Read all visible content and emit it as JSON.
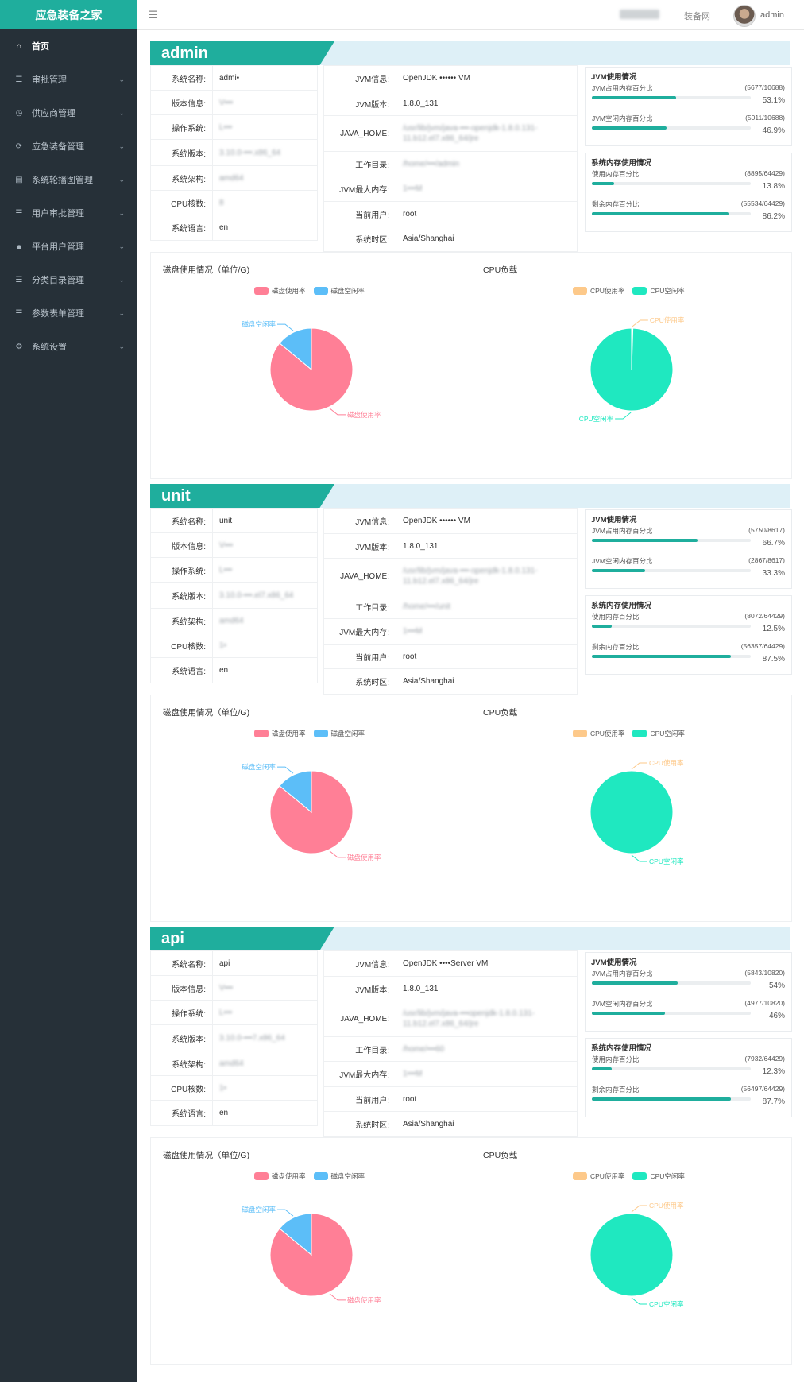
{
  "app": {
    "title": "应急装备之家"
  },
  "header": {
    "blurred_text": "••••••",
    "nav_link": "装备网",
    "user": "admin"
  },
  "sidebar": {
    "items": [
      {
        "label": "首页",
        "icon": "home-icon"
      },
      {
        "label": "审批管理",
        "icon": "list-icon"
      },
      {
        "label": "供应商管理",
        "icon": "clock-icon"
      },
      {
        "label": "应急装备管理",
        "icon": "refresh-icon"
      },
      {
        "label": "系统轮播图管理",
        "icon": "document-icon"
      },
      {
        "label": "用户审批管理",
        "icon": "list-icon"
      },
      {
        "label": "平台用户管理",
        "icon": "lock-icon"
      },
      {
        "label": "分类目录管理",
        "icon": "list-icon"
      },
      {
        "label": "参数表单管理",
        "icon": "list-icon"
      },
      {
        "label": "系统设置",
        "icon": "settings-icon"
      }
    ]
  },
  "labels": {
    "sys": [
      "系统名称:",
      "版本信息:",
      "操作系统:",
      "系统版本:",
      "系统架构:",
      "CPU核数:",
      "系统语言:"
    ],
    "jvm": [
      "JVM信息:",
      "JVM版本:",
      "JAVA_HOME:",
      "工作目录:",
      "JVM最大内存:",
      "当前用户:",
      "系统时区:"
    ],
    "jvm_usage": "JVM使用情况",
    "jvm_used": "JVM占用内存百分比",
    "jvm_free": "JVM空闲内存百分比",
    "sys_mem": "系统内存使用情况",
    "mem_used": "使用内存百分比",
    "mem_free": "剩余内存百分比",
    "disk_title": "磁盘使用情况（单位/G)",
    "cpu_title": "CPU负载",
    "disk_used": "磁盘使用率",
    "disk_free": "磁盘空闲率",
    "cpu_used": "CPU使用率",
    "cpu_free": "CPU空闲率"
  },
  "colors": {
    "accent": "#1fae9d",
    "disk_used": "#ff7f96",
    "disk_free": "#5cbef8",
    "cpu_used": "#fdc98a",
    "cpu_free": "#1fe8c0"
  },
  "sections": [
    {
      "name": "admin",
      "sys": [
        "admi•",
        "V•••",
        "L•••",
        "3.10.0-•••.x86_64",
        "amd64",
        "8",
        "en"
      ],
      "jvm": [
        "OpenJDK •••••• VM",
        "1.8.0_131",
        "/usr/lib/jvm/java-•••-openjdk-1.8.0.131-11.b12.el7.x86_64/jre",
        "/home/•••/admin",
        "1•••M",
        "root",
        "Asia/Shanghai"
      ],
      "jvm_used": {
        "ratio": "(5677/10688)",
        "pct": "53.1%",
        "value": 0.531
      },
      "jvm_free": {
        "ratio": "(5011/10688)",
        "pct": "46.9%",
        "value": 0.469
      },
      "mem_used": {
        "ratio": "(8895/64429)",
        "pct": "13.8%",
        "value": 0.138
      },
      "mem_free": {
        "ratio": "(55534/64429)",
        "pct": "86.2%",
        "value": 0.862
      },
      "chart_data": [
        {
          "type": "pie",
          "title": "磁盘使用情况（单位/G)",
          "categories": [
            "磁盘使用率",
            "磁盘空闲率"
          ],
          "values": [
            86,
            14
          ]
        },
        {
          "type": "pie",
          "title": "CPU负载",
          "categories": [
            "CPU使用率",
            "CPU空闲率"
          ],
          "values": [
            0.5,
            99.5
          ]
        }
      ]
    },
    {
      "name": "unit",
      "sys": [
        "unit",
        "V•••",
        "L•••",
        "3.10.0-•••.el7.x86_64",
        "amd64",
        "1•",
        "en"
      ],
      "jvm": [
        "OpenJDK •••••• VM",
        "1.8.0_131",
        "/usr/lib/jvm/java-•••-openjdk-1.8.0.131-11.b12.el7.x86_64/jre",
        "/home/•••/unit",
        "1•••M",
        "root",
        "Asia/Shanghai"
      ],
      "jvm_used": {
        "ratio": "(5750/8617)",
        "pct": "66.7%",
        "value": 0.667
      },
      "jvm_free": {
        "ratio": "(2867/8617)",
        "pct": "33.3%",
        "value": 0.333
      },
      "mem_used": {
        "ratio": "(8072/64429)",
        "pct": "12.5%",
        "value": 0.125
      },
      "mem_free": {
        "ratio": "(56357/64429)",
        "pct": "87.5%",
        "value": 0.875
      },
      "chart_data": [
        {
          "type": "pie",
          "title": "磁盘使用情况（单位/G)",
          "categories": [
            "磁盘使用率",
            "磁盘空闲率"
          ],
          "values": [
            86,
            14
          ]
        },
        {
          "type": "pie",
          "title": "CPU负载",
          "categories": [
            "CPU使用率",
            "CPU空闲率"
          ],
          "values": [
            0,
            100
          ]
        }
      ]
    },
    {
      "name": "api",
      "sys": [
        "api",
        "V•••",
        "L•••",
        "3.10.0-•••7.x86_64",
        "amd64",
        "1•",
        "en"
      ],
      "jvm": [
        "OpenJDK ••••Server VM",
        "1.8.0_131",
        "/usr/lib/jvm/java-•••openjdk-1.8.0.131-11.b12.el7.x86_64/jre",
        "/home/•••60",
        "1•••M",
        "root",
        "Asia/Shanghai"
      ],
      "jvm_used": {
        "ratio": "(5843/10820)",
        "pct": "54%",
        "value": 0.54
      },
      "jvm_free": {
        "ratio": "(4977/10820)",
        "pct": "46%",
        "value": 0.46
      },
      "mem_used": {
        "ratio": "(7932/64429)",
        "pct": "12.3%",
        "value": 0.123
      },
      "mem_free": {
        "ratio": "(56497/64429)",
        "pct": "87.7%",
        "value": 0.877
      },
      "chart_data": [
        {
          "type": "pie",
          "title": "磁盘使用情况（单位/G)",
          "categories": [
            "磁盘使用率",
            "磁盘空闲率"
          ],
          "values": [
            86,
            14
          ]
        },
        {
          "type": "pie",
          "title": "CPU负载",
          "categories": [
            "CPU使用率",
            "CPU空闲率"
          ],
          "values": [
            0,
            100
          ]
        }
      ]
    }
  ]
}
